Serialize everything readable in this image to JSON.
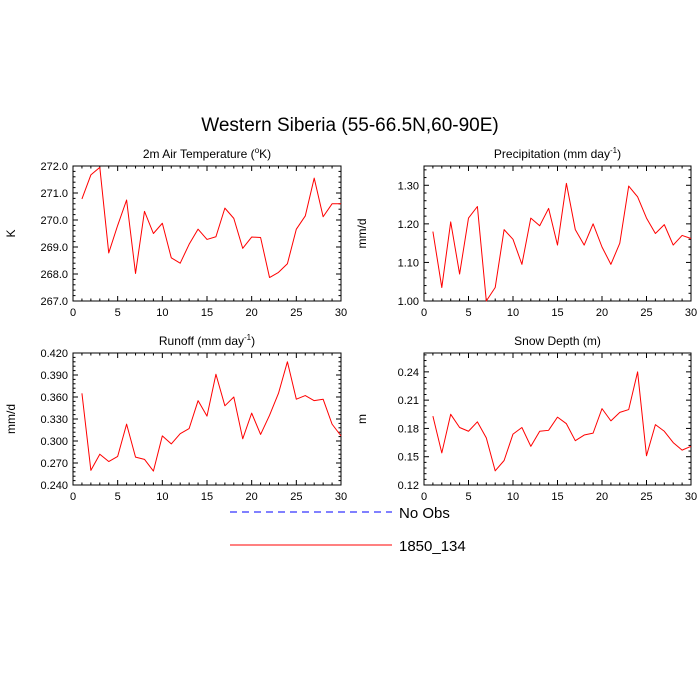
{
  "title": "Western Siberia (55-66.5N,60-90E)",
  "colors": {
    "model": "#ff0000",
    "obs": "#0000ff",
    "frame": "#000000"
  },
  "legend": {
    "placement": "bottom-center",
    "entries": [
      {
        "label": "No Obs",
        "style": "dashed",
        "color": "#0000ff"
      },
      {
        "label": "1850_134",
        "style": "solid",
        "color": "#ff0000"
      }
    ]
  },
  "chart_data": [
    {
      "type": "line",
      "title_main": "2m Air Temperature (",
      "title_sup": "o",
      "title_tail": "K)",
      "ylabel": "K",
      "xlim": [
        0,
        30
      ],
      "ylim": [
        267.0,
        272.0
      ],
      "xticks": [
        0,
        5,
        10,
        15,
        20,
        25,
        30
      ],
      "yticks": [
        267.0,
        268.0,
        269.0,
        270.0,
        271.0,
        272.0
      ],
      "ytick_labels": [
        "267.0",
        "268.0",
        "269.0",
        "270.0",
        "271.0",
        "272.0"
      ],
      "grid": false,
      "x": [
        1,
        2,
        3,
        4,
        5,
        6,
        7,
        8,
        9,
        10,
        11,
        12,
        13,
        14,
        15,
        16,
        17,
        18,
        19,
        20,
        21,
        22,
        23,
        24,
        25,
        26,
        27,
        28,
        29,
        30
      ],
      "series": [
        {
          "name": "1850_134",
          "values": [
            270.78,
            271.67,
            271.95,
            268.78,
            269.8,
            270.74,
            268.02,
            270.32,
            269.5,
            269.88,
            268.6,
            268.4,
            269.1,
            269.66,
            269.28,
            269.38,
            270.44,
            270.06,
            268.95,
            269.37,
            269.35,
            267.87,
            268.06,
            268.38,
            269.66,
            270.15,
            271.55,
            270.12,
            270.6,
            270.6
          ]
        }
      ]
    },
    {
      "type": "line",
      "title_main": "Precipitation (mm day",
      "title_sup": "-1",
      "title_tail": ")",
      "ylabel": "mm/d",
      "xlim": [
        0,
        30
      ],
      "ylim": [
        1.0,
        1.35
      ],
      "xticks": [
        0,
        5,
        10,
        15,
        20,
        25,
        30
      ],
      "yticks": [
        1.0,
        1.1,
        1.2,
        1.3
      ],
      "ytick_labels": [
        "1.00",
        "1.10",
        "1.20",
        "1.30"
      ],
      "grid": false,
      "x": [
        1,
        2,
        3,
        4,
        5,
        6,
        7,
        8,
        9,
        10,
        11,
        12,
        13,
        14,
        15,
        16,
        17,
        18,
        19,
        20,
        21,
        22,
        23,
        24,
        25,
        26,
        27,
        28,
        29,
        30
      ],
      "series": [
        {
          "name": "1850_134",
          "values": [
            1.18,
            1.035,
            1.205,
            1.07,
            1.215,
            1.245,
            1.0,
            1.035,
            1.185,
            1.16,
            1.095,
            1.215,
            1.195,
            1.24,
            1.145,
            1.305,
            1.185,
            1.145,
            1.2,
            1.14,
            1.095,
            1.15,
            1.298,
            1.27,
            1.215,
            1.175,
            1.198,
            1.145,
            1.17,
            1.162
          ]
        }
      ]
    },
    {
      "type": "line",
      "title_main": "Runoff (mm day",
      "title_sup": "-1",
      "title_tail": ")",
      "ylabel": "mm/d",
      "xlim": [
        0,
        30
      ],
      "ylim": [
        0.24,
        0.42
      ],
      "xticks": [
        0,
        5,
        10,
        15,
        20,
        25,
        30
      ],
      "yticks": [
        0.24,
        0.27,
        0.3,
        0.33,
        0.36,
        0.39,
        0.42
      ],
      "ytick_labels": [
        "0.240",
        "0.270",
        "0.300",
        "0.330",
        "0.360",
        "0.390",
        "0.420"
      ],
      "grid": false,
      "x": [
        1,
        2,
        3,
        4,
        5,
        6,
        7,
        8,
        9,
        10,
        11,
        12,
        13,
        14,
        15,
        16,
        17,
        18,
        19,
        20,
        21,
        22,
        23,
        24,
        25,
        26,
        27,
        28,
        29,
        30
      ],
      "series": [
        {
          "name": "1850_134",
          "values": [
            0.365,
            0.26,
            0.282,
            0.272,
            0.279,
            0.323,
            0.278,
            0.275,
            0.259,
            0.307,
            0.296,
            0.31,
            0.317,
            0.355,
            0.334,
            0.391,
            0.348,
            0.36,
            0.303,
            0.338,
            0.309,
            0.335,
            0.365,
            0.408,
            0.357,
            0.362,
            0.355,
            0.357,
            0.323,
            0.307
          ]
        }
      ]
    },
    {
      "type": "line",
      "title_main": "Snow Depth (m)",
      "title_sup": "",
      "title_tail": "",
      "ylabel": "m",
      "xlim": [
        0,
        30
      ],
      "ylim": [
        0.12,
        0.26
      ],
      "xticks": [
        0,
        5,
        10,
        15,
        20,
        25,
        30
      ],
      "yticks": [
        0.12,
        0.15,
        0.18,
        0.21,
        0.24
      ],
      "ytick_labels": [
        "0.12",
        "0.15",
        "0.18",
        "0.21",
        "0.24"
      ],
      "grid": false,
      "x": [
        1,
        2,
        3,
        4,
        5,
        6,
        7,
        8,
        9,
        10,
        11,
        12,
        13,
        14,
        15,
        16,
        17,
        18,
        19,
        20,
        21,
        22,
        23,
        24,
        25,
        26,
        27,
        28,
        29,
        30
      ],
      "series": [
        {
          "name": "1850_134",
          "values": [
            0.193,
            0.154,
            0.195,
            0.181,
            0.177,
            0.187,
            0.17,
            0.135,
            0.146,
            0.174,
            0.181,
            0.161,
            0.177,
            0.178,
            0.192,
            0.185,
            0.167,
            0.173,
            0.175,
            0.201,
            0.188,
            0.197,
            0.2,
            0.24,
            0.151,
            0.184,
            0.177,
            0.165,
            0.157,
            0.161
          ]
        }
      ]
    }
  ]
}
